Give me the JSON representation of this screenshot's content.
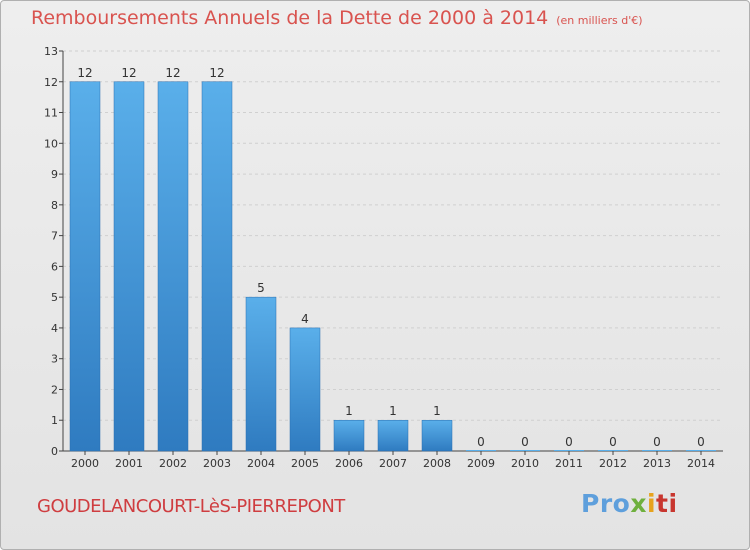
{
  "header": {
    "title": "Remboursements Annuels de la Dette de 2000 à 2014",
    "unit": "(en milliers d'€)"
  },
  "footer": {
    "commune": "GOUDELANCOURT-LèS-PIERREPONT"
  },
  "logo": {
    "text": "Proxiti",
    "parts": [
      "Pro",
      "x",
      "i",
      "ti"
    ]
  },
  "colors": {
    "title": "#d9534f",
    "bar_top": "#5aafea",
    "bar_bottom": "#2f7bc0",
    "axis": "#444444",
    "grid": "#d0d0d0"
  },
  "chart_data": {
    "type": "bar",
    "title": "Remboursements Annuels de la Dette de 2000 à 2014",
    "subtitle": "(en milliers d'€)",
    "xlabel": "",
    "ylabel": "",
    "categories": [
      "2000",
      "2001",
      "2002",
      "2003",
      "2004",
      "2005",
      "2006",
      "2007",
      "2008",
      "2009",
      "2010",
      "2011",
      "2012",
      "2013",
      "2014"
    ],
    "values": [
      12,
      12,
      12,
      12,
      5,
      4,
      1,
      1,
      1,
      0,
      0,
      0,
      0,
      0,
      0
    ],
    "ylim": [
      0,
      13
    ],
    "yticks": [
      0,
      1,
      2,
      3,
      4,
      5,
      6,
      7,
      8,
      9,
      10,
      11,
      12,
      13
    ],
    "grid": true,
    "legend": "none"
  }
}
